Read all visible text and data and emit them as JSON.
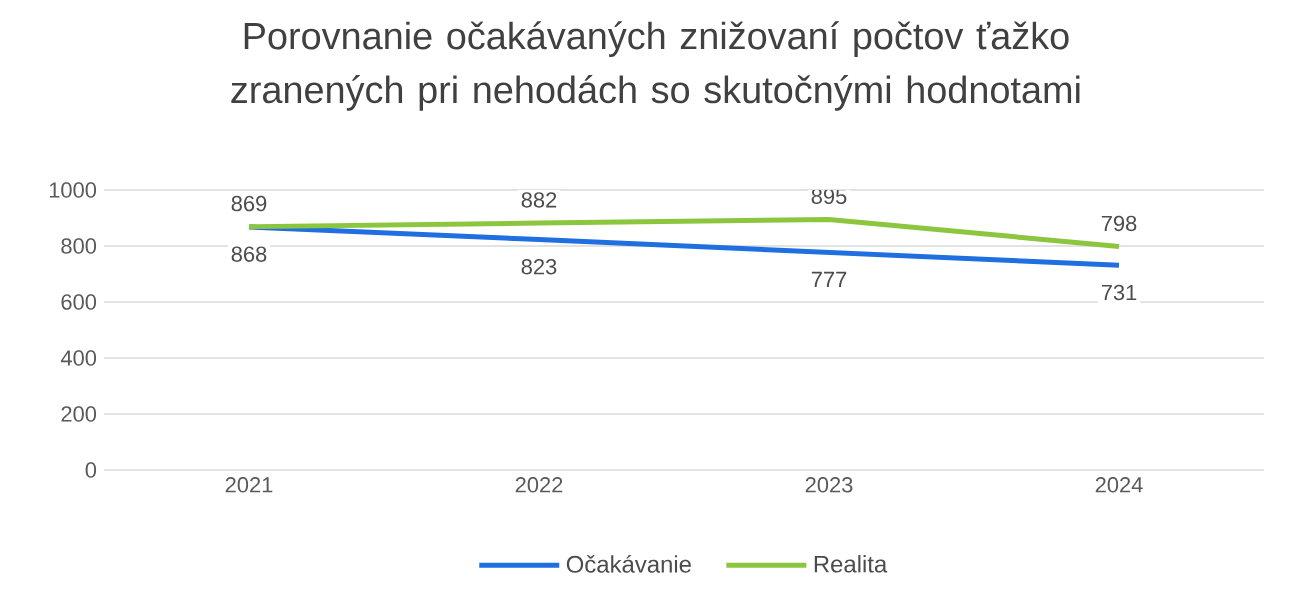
{
  "chart_data": {
    "type": "line",
    "title": "Porovnanie očakávaných znižovaní počtov ťažko zranených pri nehodách so skutočnými hodnotami",
    "categories": [
      "2021",
      "2022",
      "2023",
      "2024"
    ],
    "series": [
      {
        "name": "Očakávanie",
        "color": "#1f6fe0",
        "values": [
          868,
          823,
          777,
          731
        ]
      },
      {
        "name": "Realita",
        "color": "#8cc63f",
        "values": [
          869,
          882,
          895,
          798
        ]
      }
    ],
    "ylim": [
      0,
      1000
    ],
    "yticks": [
      0,
      200,
      400,
      600,
      800,
      1000
    ],
    "grid": "y",
    "legend": "bottom",
    "data_labels": true,
    "marker": "none",
    "line_style": "solid"
  }
}
